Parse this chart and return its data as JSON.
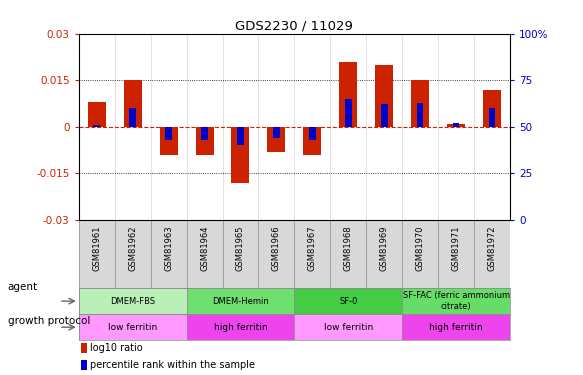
{
  "title": "GDS2230 / 11029",
  "samples": [
    "GSM81961",
    "GSM81962",
    "GSM81963",
    "GSM81964",
    "GSM81965",
    "GSM81966",
    "GSM81967",
    "GSM81968",
    "GSM81969",
    "GSM81970",
    "GSM81971",
    "GSM81972"
  ],
  "log10_ratio": [
    0.008,
    0.015,
    -0.009,
    -0.009,
    -0.018,
    -0.008,
    -0.009,
    0.021,
    0.02,
    0.015,
    0.001,
    0.012
  ],
  "percentile_rank": [
    51,
    60,
    43,
    43,
    40,
    44,
    43,
    65,
    62,
    63,
    52,
    60
  ],
  "ylim": [
    -0.03,
    0.03
  ],
  "yticks_left": [
    -0.03,
    -0.015,
    0,
    0.015,
    0.03
  ],
  "yticks_right": [
    0,
    25,
    50,
    75,
    100
  ],
  "hlines": [
    -0.015,
    0.015
  ],
  "agent_groups": [
    {
      "label": "DMEM-FBS",
      "start": 0,
      "end": 3,
      "color": "#b8f0b8"
    },
    {
      "label": "DMEM-Hemin",
      "start": 3,
      "end": 6,
      "color": "#6fe06f"
    },
    {
      "label": "SF-0",
      "start": 6,
      "end": 9,
      "color": "#44cc44"
    },
    {
      "label": "SF-FAC (ferric ammonium\ncitrate)",
      "start": 9,
      "end": 12,
      "color": "#66dd66"
    }
  ],
  "growth_groups": [
    {
      "label": "low ferritin",
      "start": 0,
      "end": 3,
      "color": "#ff99ff"
    },
    {
      "label": "high ferritin",
      "start": 3,
      "end": 6,
      "color": "#ee44ee"
    },
    {
      "label": "low ferritin",
      "start": 6,
      "end": 9,
      "color": "#ff99ff"
    },
    {
      "label": "high ferritin",
      "start": 9,
      "end": 12,
      "color": "#ee44ee"
    }
  ],
  "bar_color_red": "#cc2200",
  "bar_color_blue": "#0000cc",
  "bar_width": 0.5,
  "percentile_bar_width": 0.18,
  "sample_bg_color": "#d8d8d8",
  "sample_border_color": "#888888"
}
